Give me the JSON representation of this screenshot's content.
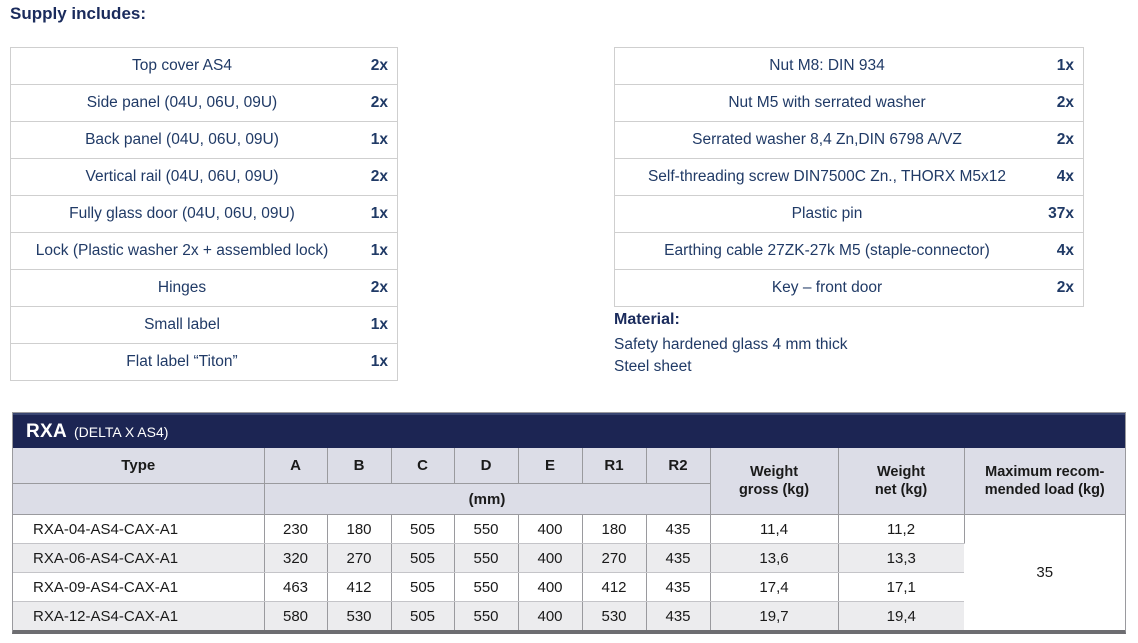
{
  "colors": {
    "navy": "#1c2553",
    "text_navy": "#203a66",
    "heading_navy": "#1a2b5c",
    "header_bg": "#dcdde7",
    "row_alt": "#ececee",
    "border_light": "#cfcfcf",
    "border_mid": "#9a9a9e",
    "border_dark": "#6d6d71",
    "table_text": "#1a1a1a"
  },
  "supply": {
    "heading": "Supply includes:",
    "left_rows": [
      {
        "item": "Top cover AS4",
        "qty": "2x"
      },
      {
        "item": "Side panel (04U, 06U, 09U)",
        "qty": "2x"
      },
      {
        "item": "Back panel (04U, 06U, 09U)",
        "qty": "1x"
      },
      {
        "item": "Vertical rail (04U, 06U, 09U)",
        "qty": "2x"
      },
      {
        "item": "Fully glass door (04U, 06U, 09U)",
        "qty": "1x"
      },
      {
        "item": "Lock (Plastic washer 2x + assembled lock)",
        "qty": "1x"
      },
      {
        "item": "Hinges",
        "qty": "2x"
      },
      {
        "item": "Small label",
        "qty": "1x"
      },
      {
        "item": "Flat label “Titon”",
        "qty": "1x"
      }
    ],
    "right_rows": [
      {
        "item": "Nut M8: DIN 934",
        "qty": "1x"
      },
      {
        "item": "Nut M5 with serrated washer",
        "qty": "2x"
      },
      {
        "item": "Serrated washer 8,4 Zn,DIN 6798 A/VZ",
        "qty": "2x"
      },
      {
        "item": "Self-threading screw DIN7500C Zn., THORX M5x12",
        "qty": "4x"
      },
      {
        "item": "Plastic pin",
        "qty": "37x"
      },
      {
        "item": "Earthing cable 27ZK-27k M5 (staple-connector)",
        "qty": "4x"
      },
      {
        "item": "Key – front door",
        "qty": "2x"
      }
    ]
  },
  "material": {
    "heading": "Material:",
    "lines": [
      "Safety hardened glass 4 mm thick",
      "Steel sheet"
    ]
  },
  "spec_table": {
    "title": "RXA",
    "subtitle": "(DELTA X AS4)",
    "headers": {
      "type": "Type",
      "dims": [
        "A",
        "B",
        "C",
        "D",
        "E",
        "R1",
        "R2"
      ],
      "unit": "(mm)",
      "weight_gross": [
        "Weight",
        "gross (kg)"
      ],
      "weight_net": [
        "Weight",
        "net (kg)"
      ],
      "max_load": [
        "Maximum recom-",
        "mended load (kg)"
      ]
    },
    "rows": [
      {
        "type": "RXA-04-AS4-CAX-A1",
        "values": [
          "230",
          "180",
          "505",
          "550",
          "400",
          "180",
          "435"
        ],
        "weight_gross": "11,4",
        "weight_net": "11,2"
      },
      {
        "type": "RXA-06-AS4-CAX-A1",
        "values": [
          "320",
          "270",
          "505",
          "550",
          "400",
          "270",
          "435"
        ],
        "weight_gross": "13,6",
        "weight_net": "13,3"
      },
      {
        "type": "RXA-09-AS4-CAX-A1",
        "values": [
          "463",
          "412",
          "505",
          "550",
          "400",
          "412",
          "435"
        ],
        "weight_gross": "17,4",
        "weight_net": "17,1"
      },
      {
        "type": "RXA-12-AS4-CAX-A1",
        "values": [
          "580",
          "530",
          "505",
          "550",
          "400",
          "530",
          "435"
        ],
        "weight_gross": "19,7",
        "weight_net": "19,4"
      }
    ],
    "max_load_value": "35"
  }
}
